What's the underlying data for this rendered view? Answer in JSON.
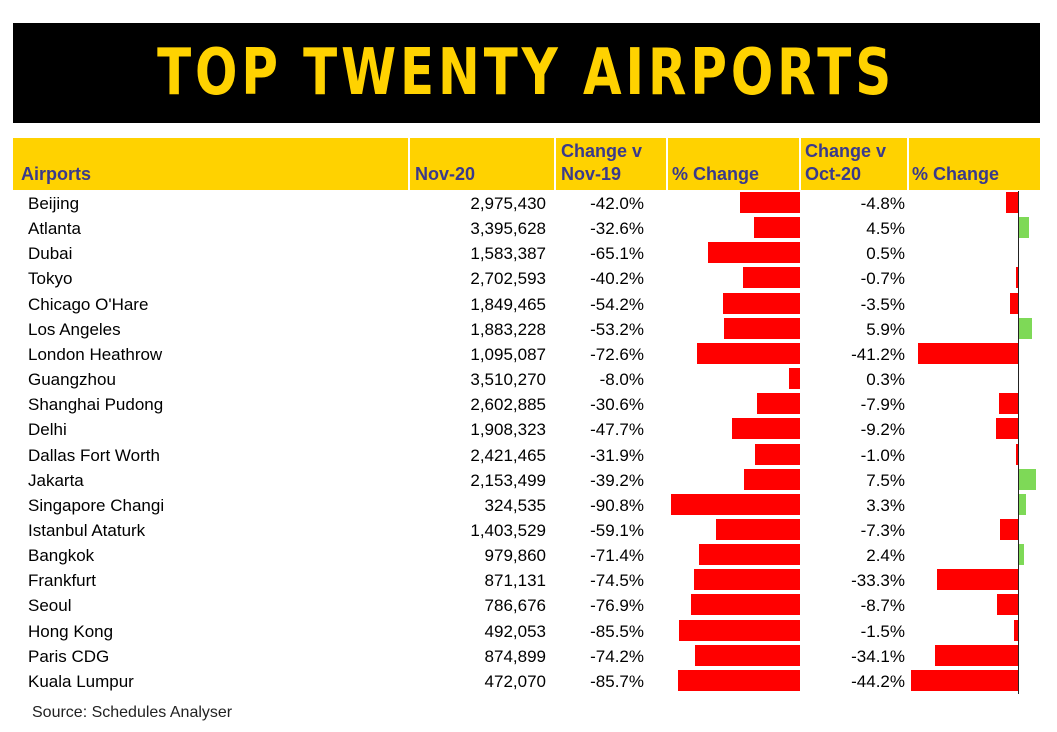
{
  "title": "TOP TWENTY AIRPORTS",
  "headers": {
    "airports": "Airports",
    "nov20": "Nov-20",
    "change_nov19_line1": "Change v",
    "change_nov19_line2": "Nov-19",
    "pct_change_1": "% Change",
    "change_oct20_line1": "Change v",
    "change_oct20_line2": "Oct-20",
    "pct_change_2": "% Change"
  },
  "colors": {
    "banner_bg": "#000000",
    "title": "#ffd200",
    "header_bg": "#ffd200",
    "header_text": "#3a3a8c",
    "negative": "#ff0000",
    "positive": "#7ed957"
  },
  "source": "Source: Schedules Analyser",
  "chart_data": {
    "type": "table",
    "columns": [
      "Airports",
      "Nov-20",
      "Change v Nov-19",
      "% Change",
      "Change v Oct-20",
      "% Change"
    ],
    "rows": [
      {
        "airport": "Beijing",
        "nov20": "2,975,430",
        "change_nov19": "-42.0%",
        "change_oct20": "-4.8%",
        "v19": -42.0,
        "v20": -4.8
      },
      {
        "airport": "Atlanta",
        "nov20": "3,395,628",
        "change_nov19": "-32.6%",
        "change_oct20": "4.5%",
        "v19": -32.6,
        "v20": 4.5
      },
      {
        "airport": "Dubai",
        "nov20": "1,583,387",
        "change_nov19": "-65.1%",
        "change_oct20": "0.5%",
        "v19": -65.1,
        "v20": 0.5
      },
      {
        "airport": "Tokyo",
        "nov20": "2,702,593",
        "change_nov19": "-40.2%",
        "change_oct20": "-0.7%",
        "v19": -40.2,
        "v20": -0.7
      },
      {
        "airport": "Chicago O'Hare",
        "nov20": "1,849,465",
        "change_nov19": "-54.2%",
        "change_oct20": "-3.5%",
        "v19": -54.2,
        "v20": -3.5
      },
      {
        "airport": "Los Angeles",
        "nov20": "1,883,228",
        "change_nov19": "-53.2%",
        "change_oct20": "5.9%",
        "v19": -53.2,
        "v20": 5.9
      },
      {
        "airport": "London Heathrow",
        "nov20": "1,095,087",
        "change_nov19": "-72.6%",
        "change_oct20": "-41.2%",
        "v19": -72.6,
        "v20": -41.2
      },
      {
        "airport": "Guangzhou",
        "nov20": "3,510,270",
        "change_nov19": "-8.0%",
        "change_oct20": "0.3%",
        "v19": -8.0,
        "v20": 0.3
      },
      {
        "airport": "Shanghai Pudong",
        "nov20": "2,602,885",
        "change_nov19": "-30.6%",
        "change_oct20": "-7.9%",
        "v19": -30.6,
        "v20": -7.9
      },
      {
        "airport": "Delhi",
        "nov20": "1,908,323",
        "change_nov19": "-47.7%",
        "change_oct20": "-9.2%",
        "v19": -47.7,
        "v20": -9.2
      },
      {
        "airport": "Dallas Fort Worth",
        "nov20": "2,421,465",
        "change_nov19": "-31.9%",
        "change_oct20": "-1.0%",
        "v19": -31.9,
        "v20": -1.0
      },
      {
        "airport": "Jakarta",
        "nov20": "2,153,499",
        "change_nov19": "-39.2%",
        "change_oct20": "7.5%",
        "v19": -39.2,
        "v20": 7.5
      },
      {
        "airport": "Singapore Changi",
        "nov20": "324,535",
        "change_nov19": "-90.8%",
        "change_oct20": "3.3%",
        "v19": -90.8,
        "v20": 3.3
      },
      {
        "airport": "Istanbul Ataturk",
        "nov20": "1,403,529",
        "change_nov19": "-59.1%",
        "change_oct20": "-7.3%",
        "v19": -59.1,
        "v20": -7.3
      },
      {
        "airport": "Bangkok",
        "nov20": "979,860",
        "change_nov19": "-71.4%",
        "change_oct20": "2.4%",
        "v19": -71.4,
        "v20": 2.4
      },
      {
        "airport": "Frankfurt",
        "nov20": "871,131",
        "change_nov19": "-74.5%",
        "change_oct20": "-33.3%",
        "v19": -74.5,
        "v20": -33.3
      },
      {
        "airport": "Seoul",
        "nov20": "786,676",
        "change_nov19": "-76.9%",
        "change_oct20": "-8.7%",
        "v19": -76.9,
        "v20": -8.7
      },
      {
        "airport": "Hong Kong",
        "nov20": "492,053",
        "change_nov19": "-85.5%",
        "change_oct20": "-1.5%",
        "v19": -85.5,
        "v20": -1.5
      },
      {
        "airport": "Paris CDG",
        "nov20": "874,899",
        "change_nov19": "-74.2%",
        "change_oct20": "-34.1%",
        "v19": -74.2,
        "v20": -34.1
      },
      {
        "airport": "Kuala Lumpur",
        "nov20": "472,070",
        "change_nov19": "-85.7%",
        "change_oct20": "-44.2%",
        "v19": -85.7,
        "v20": -44.2
      }
    ]
  }
}
